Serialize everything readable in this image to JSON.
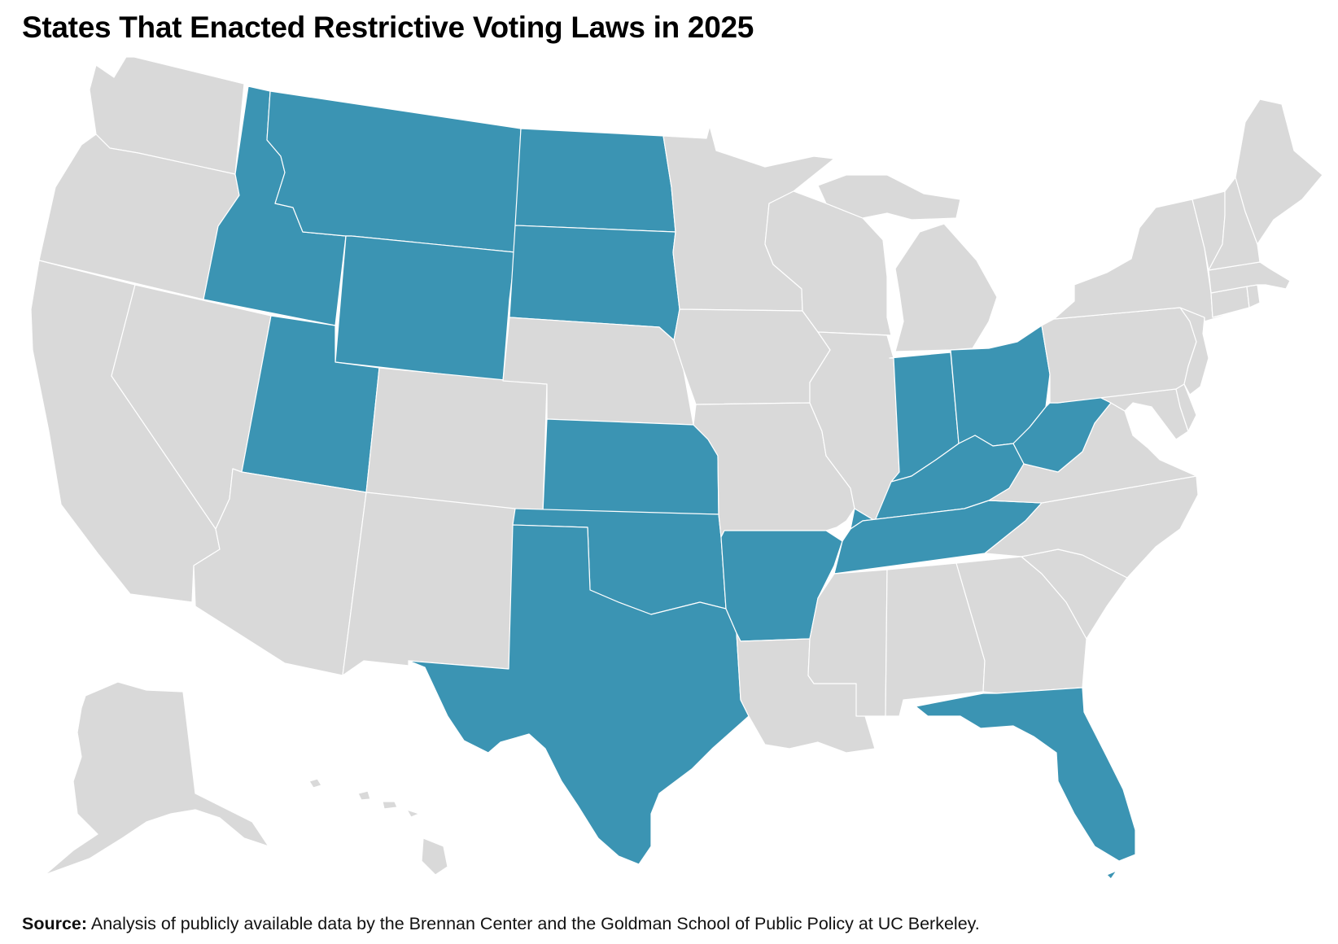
{
  "title": "States That Enacted Restrictive Voting Laws in 2025",
  "colors": {
    "restrictive": "#3b94b3",
    "other": "#d9d9d9",
    "border": "#ffffff"
  },
  "states": [
    {
      "name": "Washington",
      "restrictive": false
    },
    {
      "name": "Oregon",
      "restrictive": false
    },
    {
      "name": "California",
      "restrictive": false
    },
    {
      "name": "Nevada",
      "restrictive": false
    },
    {
      "name": "Idaho",
      "restrictive": true
    },
    {
      "name": "Montana",
      "restrictive": true
    },
    {
      "name": "Wyoming",
      "restrictive": true
    },
    {
      "name": "Utah",
      "restrictive": true
    },
    {
      "name": "Arizona",
      "restrictive": false
    },
    {
      "name": "Colorado",
      "restrictive": false
    },
    {
      "name": "New Mexico",
      "restrictive": false
    },
    {
      "name": "North Dakota",
      "restrictive": true
    },
    {
      "name": "South Dakota",
      "restrictive": true
    },
    {
      "name": "Nebraska",
      "restrictive": false
    },
    {
      "name": "Kansas",
      "restrictive": true
    },
    {
      "name": "Oklahoma",
      "restrictive": true
    },
    {
      "name": "Texas",
      "restrictive": true
    },
    {
      "name": "Minnesota",
      "restrictive": false
    },
    {
      "name": "Iowa",
      "restrictive": false
    },
    {
      "name": "Missouri",
      "restrictive": false
    },
    {
      "name": "Arkansas",
      "restrictive": true
    },
    {
      "name": "Louisiana",
      "restrictive": false
    },
    {
      "name": "Wisconsin",
      "restrictive": false
    },
    {
      "name": "Illinois",
      "restrictive": false
    },
    {
      "name": "Michigan",
      "restrictive": false
    },
    {
      "name": "Indiana",
      "restrictive": true
    },
    {
      "name": "Ohio",
      "restrictive": true
    },
    {
      "name": "Kentucky",
      "restrictive": true
    },
    {
      "name": "Tennessee",
      "restrictive": true
    },
    {
      "name": "Mississippi",
      "restrictive": false
    },
    {
      "name": "Alabama",
      "restrictive": false
    },
    {
      "name": "Georgia",
      "restrictive": false
    },
    {
      "name": "Florida",
      "restrictive": true
    },
    {
      "name": "South Carolina",
      "restrictive": false
    },
    {
      "name": "North Carolina",
      "restrictive": false
    },
    {
      "name": "Virginia",
      "restrictive": false
    },
    {
      "name": "West Virginia",
      "restrictive": true
    },
    {
      "name": "Maryland",
      "restrictive": false
    },
    {
      "name": "Delaware",
      "restrictive": false
    },
    {
      "name": "Pennsylvania",
      "restrictive": false
    },
    {
      "name": "New Jersey",
      "restrictive": false
    },
    {
      "name": "New York",
      "restrictive": false
    },
    {
      "name": "Connecticut",
      "restrictive": false
    },
    {
      "name": "Rhode Island",
      "restrictive": false
    },
    {
      "name": "Massachusetts",
      "restrictive": false
    },
    {
      "name": "Vermont",
      "restrictive": false
    },
    {
      "name": "New Hampshire",
      "restrictive": false
    },
    {
      "name": "Maine",
      "restrictive": false
    },
    {
      "name": "Alaska",
      "restrictive": false
    },
    {
      "name": "Hawaii",
      "restrictive": false
    }
  ],
  "source": {
    "label": "Source:",
    "text": "Analysis of publicly available data by the Brennan Center and the Goldman School of Public Policy at UC Berkeley."
  }
}
